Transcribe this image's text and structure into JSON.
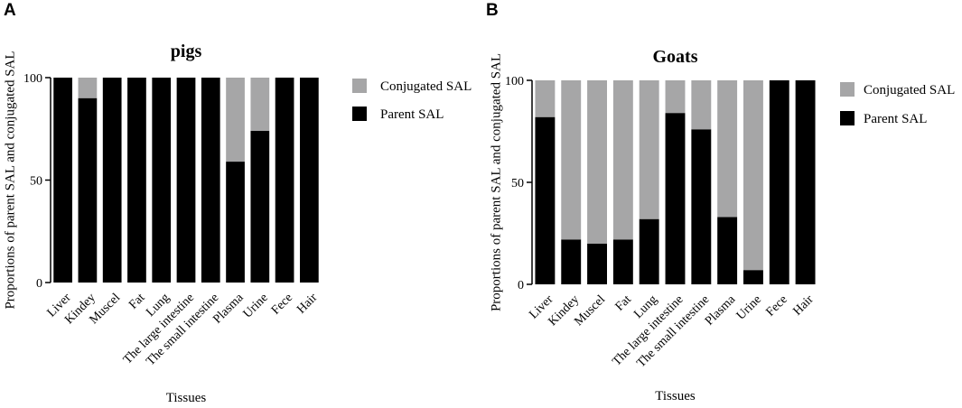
{
  "panels": [
    "A",
    "B"
  ],
  "colors": {
    "parent": "#000000",
    "conjugated": "#a6a6a7",
    "axis": "#000000"
  },
  "chart_data": [
    {
      "type": "bar",
      "stacked": true,
      "title": "pigs",
      "xlabel": "Tissues",
      "ylabel": "Proportions of parent SAL and conjugated SAL",
      "ylim": [
        0,
        100
      ],
      "yticks": [
        "0",
        "50",
        "100"
      ],
      "categories": [
        "Liver",
        "Kindey",
        "Muscel",
        "Fat",
        "Lung",
        "The large intestine",
        "The small intestine",
        "Plasma",
        "Urine",
        "Fece",
        "Hair"
      ],
      "series": [
        {
          "name": "Parent SAL",
          "values": [
            100,
            90,
            100,
            100,
            100,
            100,
            100,
            59,
            74,
            100,
            100
          ]
        },
        {
          "name": "Conjugated SAL",
          "values": [
            0,
            10,
            0,
            0,
            0,
            0,
            0,
            41,
            26,
            0,
            0
          ]
        }
      ],
      "legend": [
        "Conjugated SAL",
        "Parent SAL"
      ],
      "legend_position": "right"
    },
    {
      "type": "bar",
      "stacked": true,
      "title": "Goats",
      "xlabel": "Tissues",
      "ylabel": "Proportions of parent SAL and conjugated SAL",
      "ylim": [
        0,
        100
      ],
      "yticks": [
        "0",
        "50",
        "100"
      ],
      "categories": [
        "Liver",
        "Kindey",
        "Muscel",
        "Fat",
        "Lung",
        "The large intestine",
        "The small intestine",
        "Plasma",
        "Urine",
        "Fece",
        "Hair"
      ],
      "series": [
        {
          "name": "Parent SAL",
          "values": [
            82,
            22,
            20,
            22,
            32,
            84,
            76,
            33,
            7,
            100,
            100
          ]
        },
        {
          "name": "Conjugated SAL",
          "values": [
            18,
            78,
            80,
            78,
            68,
            16,
            24,
            67,
            93,
            0,
            0
          ]
        }
      ],
      "legend": [
        "Conjugated SAL",
        "Parent SAL"
      ],
      "legend_position": "right"
    }
  ]
}
